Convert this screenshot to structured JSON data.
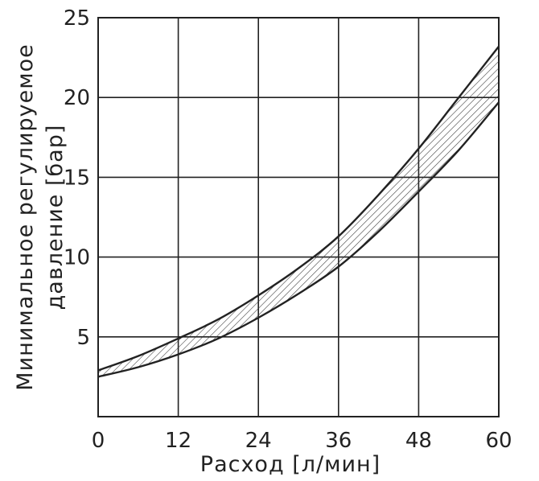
{
  "chart_data": {
    "type": "area",
    "title": "",
    "xlabel": "Расход [л/мин]",
    "ylabel_line1": "Минимальное регулируемое",
    "ylabel_line2": "давление [бар]",
    "xlim": [
      0,
      60
    ],
    "ylim": [
      0,
      25
    ],
    "xticks": [
      0,
      12,
      24,
      36,
      48,
      60
    ],
    "yticks": [
      5,
      10,
      15,
      20,
      25
    ],
    "grid": true,
    "band_fill": "hatched",
    "line_color": "#222222",
    "series": [
      {
        "x": [
          0,
          6,
          12,
          18,
          24,
          30,
          36,
          42,
          48,
          54,
          60
        ],
        "values": [
          2.9,
          3.8,
          4.9,
          6.1,
          7.6,
          9.3,
          11.3,
          13.9,
          16.8,
          20.0,
          23.2
        ]
      },
      {
        "x": [
          0,
          6,
          12,
          18,
          24,
          30,
          36,
          42,
          48,
          54,
          60
        ],
        "values": [
          2.5,
          3.1,
          3.9,
          4.9,
          6.2,
          7.7,
          9.4,
          11.6,
          14.1,
          16.7,
          19.7
        ]
      }
    ]
  }
}
